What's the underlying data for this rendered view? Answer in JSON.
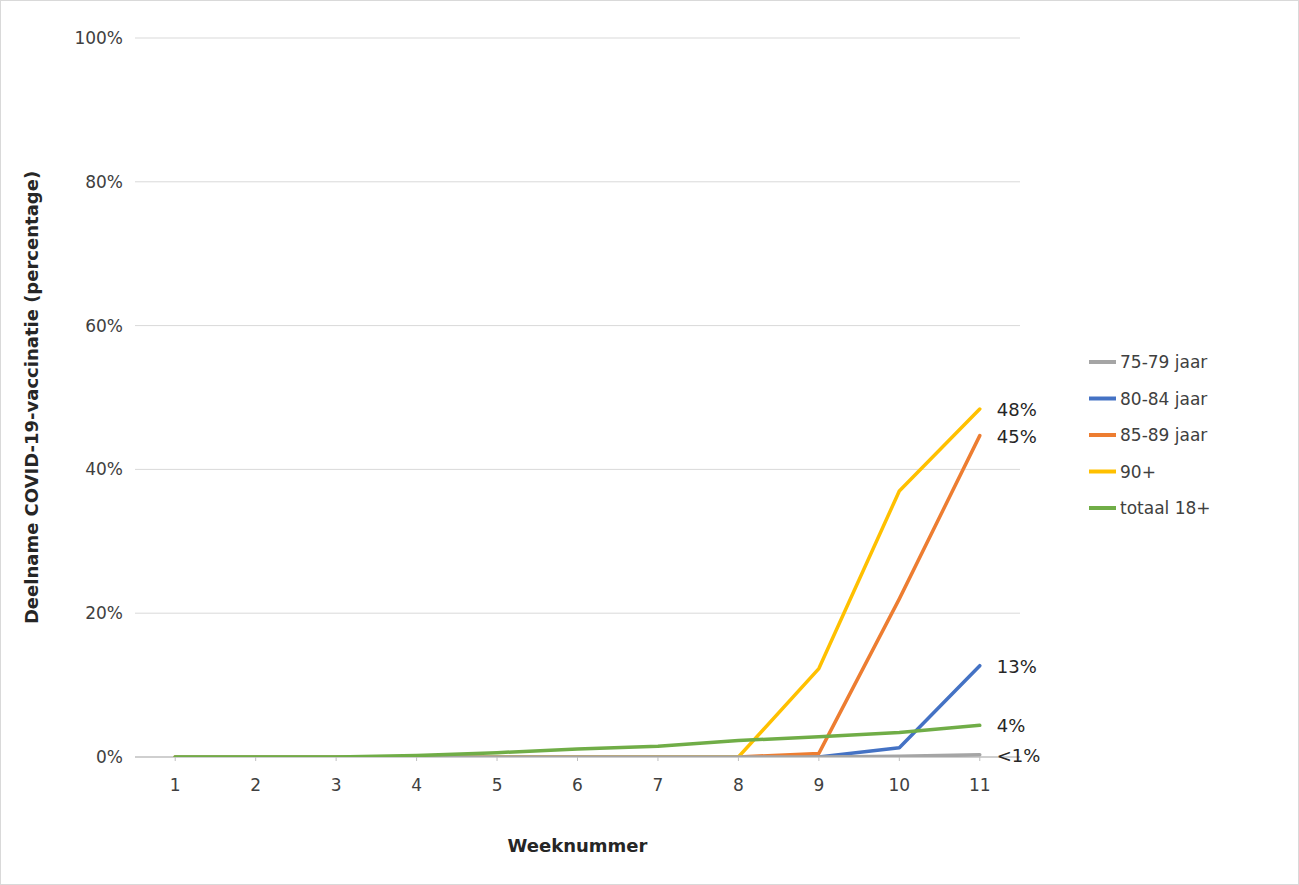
{
  "chart_data": {
    "type": "line",
    "xlabel": "Weeknummer",
    "ylabel": "Deelname COVID-19-vaccinatie (percentage)",
    "x": [
      1,
      2,
      3,
      4,
      5,
      6,
      7,
      8,
      9,
      10,
      11
    ],
    "xlim": [
      0.5,
      11.5
    ],
    "xticks": [
      1,
      2,
      3,
      4,
      5,
      6,
      7,
      8,
      9,
      10,
      11
    ],
    "ylim": [
      0,
      100
    ],
    "yticks": [
      {
        "value": 0,
        "label": "0%"
      },
      {
        "value": 20,
        "label": "20%"
      },
      {
        "value": 40,
        "label": "40%"
      },
      {
        "value": 60,
        "label": "60%"
      },
      {
        "value": 80,
        "label": "80%"
      },
      {
        "value": 100,
        "label": "100%"
      }
    ],
    "grid": true,
    "legend": "right",
    "data_labels": true,
    "series": [
      {
        "name": "75-79 jaar",
        "color": "#a5a5a5",
        "values": [
          0,
          0,
          0,
          0,
          0,
          0,
          0,
          0,
          0,
          0.1,
          0.3
        ],
        "value_labels": [
          null,
          null,
          null,
          null,
          null,
          null,
          null,
          null,
          null,
          null,
          "<1%"
        ]
      },
      {
        "name": "80-84 jaar",
        "color": "#4472c4",
        "values": [
          0,
          0,
          0,
          0,
          0,
          0,
          0,
          0,
          0,
          1.3,
          12.7
        ],
        "value_labels": [
          null,
          null,
          null,
          null,
          null,
          null,
          null,
          null,
          null,
          null,
          "13%"
        ]
      },
      {
        "name": "85-89 jaar",
        "color": "#ed7d31",
        "values": [
          0,
          0,
          0,
          0,
          0,
          0,
          0,
          0,
          0.5,
          22,
          44.7
        ],
        "value_labels": [
          null,
          null,
          null,
          null,
          null,
          null,
          null,
          null,
          null,
          null,
          "45%"
        ]
      },
      {
        "name": "90+",
        "color": "#ffc000",
        "values": [
          0,
          0,
          0,
          0,
          0,
          0,
          0,
          0,
          12.3,
          37,
          48.4
        ],
        "value_labels": [
          null,
          null,
          null,
          null,
          null,
          null,
          null,
          null,
          null,
          null,
          "48%"
        ]
      },
      {
        "name": "totaal 18+",
        "color": "#70ad47",
        "values": [
          0,
          0,
          0,
          0.2,
          0.6,
          1.1,
          1.5,
          2.3,
          2.8,
          3.4,
          4.4
        ],
        "value_labels": [
          null,
          null,
          null,
          null,
          null,
          null,
          null,
          null,
          null,
          null,
          "4%"
        ]
      }
    ]
  }
}
